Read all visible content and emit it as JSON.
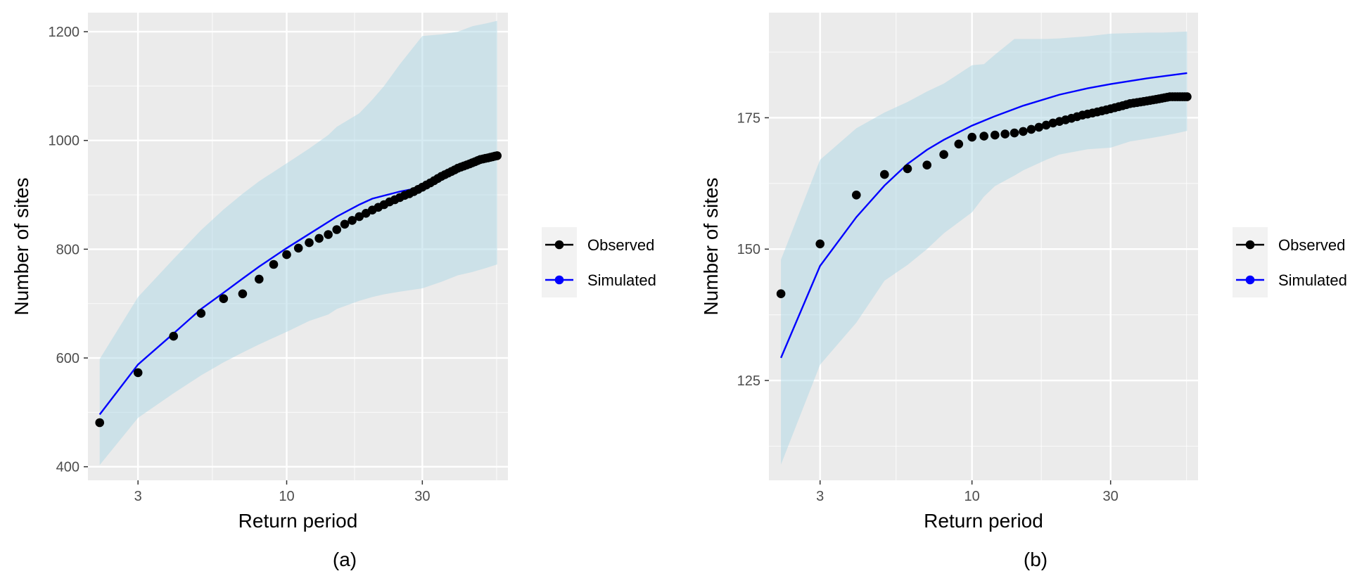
{
  "colors": {
    "panel_bg": "#ebebeb",
    "grid_major": "#ffffff",
    "ribbon": "#add8e6",
    "observed": "#000000",
    "simulated": "#0000ff",
    "legend_key_bg": "#f2f2f2"
  },
  "chart_data": [
    {
      "type": "line",
      "panel_label": "(a)",
      "xlabel": "Return period",
      "ylabel": "Number of sites",
      "x_scale": "log10",
      "xlim": [
        2,
        60
      ],
      "ylim": [
        375,
        1235
      ],
      "x_ticks": [
        3,
        10,
        30
      ],
      "x_tick_labels": [
        "3",
        "10",
        "30"
      ],
      "y_ticks": [
        400,
        600,
        800,
        1000,
        1200
      ],
      "y_tick_labels": [
        "400",
        "600",
        "800",
        "1000",
        "1200"
      ],
      "grid": true,
      "legend": {
        "placement": "right",
        "entries": [
          "Observed",
          "Simulated"
        ]
      },
      "observed": {
        "name": "Observed",
        "style": "points",
        "x": [
          2.2,
          3,
          4,
          5,
          6,
          7,
          8,
          9,
          10,
          11,
          12,
          13,
          14,
          15,
          16,
          17,
          18,
          19,
          20,
          21,
          22,
          23,
          24,
          25,
          26,
          27,
          28,
          29,
          30,
          31,
          32,
          33,
          34,
          35,
          36,
          37,
          38,
          39,
          40,
          41,
          42,
          43,
          44,
          45,
          46,
          47,
          48,
          49,
          50,
          51,
          52,
          53,
          54,
          55
        ],
        "y": [
          481,
          573,
          640,
          682,
          709,
          718,
          745,
          772,
          790,
          802,
          812,
          820,
          827,
          836,
          846,
          853,
          860,
          866,
          872,
          877,
          882,
          887,
          891,
          895,
          899,
          902,
          906,
          910,
          914,
          918,
          922,
          926,
          930,
          934,
          937,
          940,
          943,
          946,
          949,
          951,
          953,
          955,
          957,
          959,
          961,
          963,
          965,
          966,
          967,
          968,
          969,
          970,
          971,
          972
        ]
      },
      "simulated": {
        "name": "Simulated",
        "style": "line",
        "x": [
          2.2,
          3,
          4,
          5,
          6,
          7,
          8,
          10,
          12,
          15,
          18,
          20,
          25,
          30
        ],
        "y": [
          496,
          588,
          645,
          690,
          720,
          746,
          768,
          802,
          828,
          860,
          882,
          893,
          906,
          914
        ]
      },
      "ribbon": {
        "x": [
          2.2,
          3,
          4,
          5,
          6,
          7,
          8,
          10,
          12,
          14,
          15,
          18,
          20,
          22,
          25,
          30,
          35,
          40,
          45,
          50,
          55
        ],
        "lower": [
          403,
          490,
          535,
          568,
          592,
          610,
          625,
          648,
          668,
          680,
          690,
          705,
          712,
          717,
          722,
          728,
          740,
          752,
          758,
          765,
          772
        ],
        "upper": [
          598,
          712,
          782,
          835,
          873,
          902,
          925,
          958,
          985,
          1010,
          1025,
          1050,
          1075,
          1100,
          1140,
          1192,
          1195,
          1200,
          1210,
          1215,
          1220
        ]
      }
    },
    {
      "type": "line",
      "panel_label": "(b)",
      "xlabel": "Return period",
      "ylabel": "Number of sites",
      "x_scale": "log10",
      "xlim": [
        2,
        60
      ],
      "ylim": [
        106,
        195
      ],
      "x_ticks": [
        3,
        10,
        30
      ],
      "x_tick_labels": [
        "3",
        "10",
        "30"
      ],
      "y_ticks": [
        125,
        150,
        175
      ],
      "y_tick_labels": [
        "125",
        "150",
        "175"
      ],
      "grid": true,
      "legend": {
        "placement": "right",
        "entries": [
          "Observed",
          "Simulated"
        ]
      },
      "observed": {
        "name": "Observed",
        "style": "points",
        "x": [
          2.2,
          3,
          4,
          5,
          6,
          7,
          8,
          9,
          10,
          11,
          12,
          13,
          14,
          15,
          16,
          17,
          18,
          19,
          20,
          21,
          22,
          23,
          24,
          25,
          26,
          27,
          28,
          29,
          30,
          31,
          32,
          33,
          34,
          35,
          36,
          37,
          38,
          39,
          40,
          41,
          42,
          43,
          44,
          45,
          46,
          47,
          48,
          49,
          50,
          51,
          52,
          53,
          54,
          55
        ],
        "y": [
          141.5,
          151,
          160.3,
          164.2,
          165.3,
          166,
          168,
          170,
          171.3,
          171.5,
          171.7,
          171.9,
          172.1,
          172.4,
          172.8,
          173.2,
          173.6,
          174,
          174.3,
          174.6,
          174.9,
          175.2,
          175.5,
          175.7,
          175.9,
          176.1,
          176.3,
          176.5,
          176.7,
          176.9,
          177.1,
          177.3,
          177.5,
          177.7,
          177.8,
          177.9,
          178,
          178.1,
          178.2,
          178.3,
          178.4,
          178.5,
          178.6,
          178.7,
          178.8,
          178.9,
          179,
          179,
          179,
          179,
          179,
          179,
          179,
          179
        ]
      },
      "simulated": {
        "name": "Simulated",
        "style": "line",
        "x": [
          2.2,
          3,
          4,
          5,
          6,
          7,
          8,
          10,
          12,
          15,
          20,
          25,
          30,
          40,
          55
        ],
        "y": [
          129.3,
          146.8,
          156.1,
          162.1,
          166.2,
          168.9,
          170.8,
          173.5,
          175.3,
          177.3,
          179.4,
          180.6,
          181.4,
          182.5,
          183.5
        ]
      },
      "ribbon": {
        "x": [
          2.2,
          3,
          4,
          5,
          6,
          7,
          8,
          10,
          11,
          12,
          14,
          15,
          18,
          20,
          25,
          30,
          35,
          40,
          45,
          50,
          55
        ],
        "lower": [
          109,
          128,
          136,
          144,
          147,
          150,
          153,
          157,
          160,
          162,
          164,
          165,
          167,
          168,
          169,
          169.3,
          170.5,
          171,
          171.5,
          172,
          172.5
        ],
        "upper": [
          148,
          167,
          173,
          176,
          178,
          180,
          181.5,
          185,
          185.2,
          187,
          190,
          190,
          190,
          190.1,
          190.5,
          191,
          191.1,
          191.2,
          191.2,
          191.3,
          191.4
        ]
      }
    }
  ]
}
